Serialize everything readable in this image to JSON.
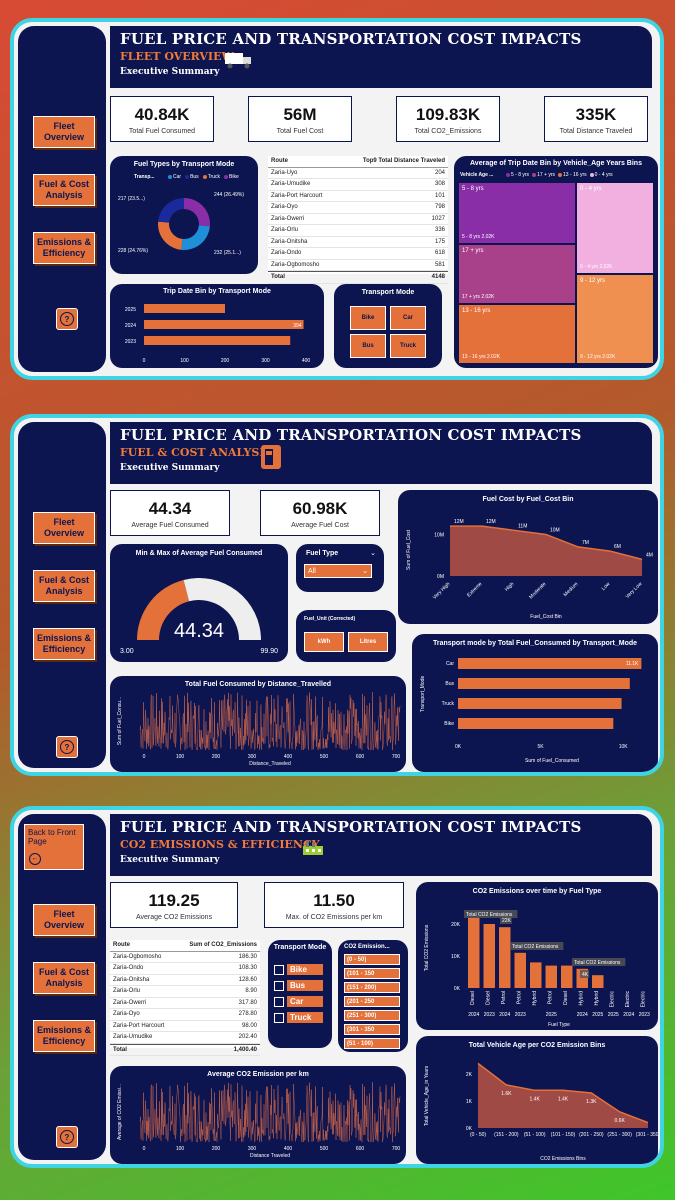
{
  "common": {
    "title": "FUEL PRICE AND TRANSPORTATION COST IMPACTS",
    "exec": "Executive Summary",
    "nav": {
      "fleet": "Fleet Overview",
      "fuel": "Fuel & Cost Analysis",
      "emissions": "Emissions & Efficiency"
    },
    "help": "?"
  },
  "p1": {
    "subtitle": "FLEET OVERVIEW",
    "kpis": [
      {
        "value": "40.84K",
        "label": "Total Fuel Consumed"
      },
      {
        "value": "56M",
        "label": "Total Fuel Cost"
      },
      {
        "value": "109.83K",
        "label": "Total CO2_Emissions"
      },
      {
        "value": "335K",
        "label": "Total Distance Traveled"
      }
    ],
    "donut": {
      "title": "Fuel Types by Transport Mode",
      "legend_title": "Transp...",
      "legend": [
        "Car",
        "Bus",
        "Truck",
        "Bike"
      ],
      "colors": [
        "#1f8fd8",
        "#1a2a9a",
        "#e4703a",
        "#8a2ea8"
      ],
      "labels": [
        "217 (23.5...)",
        "244 (26.49%)",
        "228 (24.76%)",
        "232 (25.1...)"
      ]
    },
    "route_table": {
      "h1": "Route",
      "h2": "Top9 Total Distance Traveled",
      "rows": [
        [
          "Zaria-Uyo",
          "204"
        ],
        [
          "Zaria-Umudike",
          "308"
        ],
        [
          "Zaria-Port Harcourt",
          "101"
        ],
        [
          "Zaria-Oyo",
          "798"
        ],
        [
          "Zaria-Owerri",
          "1027"
        ],
        [
          "Zaria-Orlu",
          "336"
        ],
        [
          "Zaria-Onitsha",
          "175"
        ],
        [
          "Zaria-Ondo",
          "618"
        ],
        [
          "Zaria-Ogbomosho",
          "581"
        ]
      ],
      "total": [
        "Total",
        "4148"
      ]
    },
    "treemap": {
      "title": "Average of Trip Date Bin by Vehicle_Age Years Bins",
      "legend_title": "Vehicle Age ...",
      "legend": [
        "5 - 8 yrs",
        "17 + yrs",
        "13 - 16 yrs",
        "0 - 4 yrs"
      ],
      "cells": [
        {
          "name": "5 - 8 yrs",
          "foot": "5 - 8 yrs 2.02K",
          "color": "#8a2ea8"
        },
        {
          "name": "0 - 4 yrs",
          "foot": "0 - 4 yrs 2.02K",
          "color": "#f2b0e0"
        },
        {
          "name": "17 + yrs",
          "foot": "17 + yrs 2.02K",
          "color": "#a8408a"
        },
        {
          "name": "9 - 12 yrs",
          "foot": "9 - 12 yrs 2.02K",
          "color": "#f09050"
        },
        {
          "name": "13 - 16 yrs",
          "foot": "13 - 16 yrs 2.02K",
          "color": "#e4703a"
        }
      ]
    },
    "trip_bar": {
      "title": "Trip Date Bin by Transport Mode",
      "categories": [
        "2025",
        "2024",
        "2023"
      ],
      "values": [
        200,
        394,
        361
      ],
      "ticks": [
        "0",
        "100",
        "200",
        "300",
        "400"
      ]
    },
    "transport_slicer": {
      "title": "Transport Mode",
      "items": [
        "Bike",
        "Car",
        "Bus",
        "Truck"
      ]
    }
  },
  "p2": {
    "subtitle": "FUEL & COST ANALYSIS",
    "kpis": [
      {
        "value": "44.34",
        "label": "Average Fuel Consumed"
      },
      {
        "value": "60.98K",
        "label": "Average Fuel Cost"
      }
    ],
    "gauge": {
      "title": "Min & Max of Average Fuel Consumed",
      "value": "44.34",
      "min": "3.00",
      "max": "99.90",
      "fraction": 0.42
    },
    "fuel_type": {
      "title": "Fuel Type",
      "selected": "All"
    },
    "fuel_unit": {
      "title": "Fuel_Unit (Corrected)",
      "items": [
        "kWh",
        "Litres"
      ]
    },
    "area": {
      "title": "Fuel Cost by Fuel_Cost Bin",
      "ylabel": "Sum of Fuel_Cost",
      "xlabel": "Fuel_Cost Bin",
      "categories": [
        "Very High",
        "Extreme",
        "High",
        "Moderate",
        "Medium",
        "Low",
        "Very Low"
      ],
      "values": [
        12,
        12,
        11,
        10,
        7,
        6,
        4
      ],
      "value_labels": [
        "12M",
        "12M",
        "11M",
        "10M",
        "7M",
        "6M",
        "4M"
      ],
      "yticks": [
        "10M",
        "0M"
      ]
    },
    "hbar": {
      "title": "Transport mode by Total Fuel_Consumed by Transport_Mode",
      "ylabel": "Transport_Mode",
      "xlabel": "Sum of Fuel_Consumed",
      "categories": [
        "Car",
        "Bus",
        "Truck",
        "Bike"
      ],
      "values": [
        11.1,
        10.4,
        9.9,
        9.4
      ],
      "top_label": "11.1K",
      "ticks": [
        "0K",
        "5K",
        "10K"
      ]
    },
    "dist": {
      "title": "Total Fuel Consumed by Distance_Travelled",
      "ylabel": "Sum of Fuel_Consu...",
      "xlabel": "Distance_Traveled",
      "xticks": [
        "0",
        "100",
        "200",
        "300",
        "400",
        "500",
        "600",
        "700"
      ]
    }
  },
  "p3": {
    "back": "Back to Front Page",
    "subtitle": "CO2 EMISSIONS & EFFICIENCY",
    "kpis": [
      {
        "value": "119.25",
        "label": "Average CO2 Emissions"
      },
      {
        "value": "11.50",
        "label": "Max. of CO2 Emissions per km"
      }
    ],
    "route_table": {
      "h1": "Route",
      "h2": "Sum of CO2_Emissions",
      "rows": [
        [
          "Zaria-Ogbomosho",
          "186.30"
        ],
        [
          "Zaria-Ondo",
          "108.30"
        ],
        [
          "Zaria-Onitsha",
          "128.60"
        ],
        [
          "Zaria-Orlu",
          "8.90"
        ],
        [
          "Zaria-Owerri",
          "317.80"
        ],
        [
          "Zaria-Oyo",
          "278.80"
        ],
        [
          "Zaria-Port Harcourt",
          "98.00"
        ],
        [
          "Zaria-Umudike",
          "202.40"
        ]
      ],
      "total": [
        "Total",
        "1,400.40"
      ]
    },
    "transport_slicer": {
      "title": "Transport Mode",
      "items": [
        "Bike",
        "Bus",
        "Car",
        "Truck"
      ]
    },
    "co2_bins": {
      "title": "CO2 Emission...",
      "items": [
        "(0 - 50)",
        "(101 - 150",
        "(151 - 200)",
        "(201 - 250",
        "(251 - 300)",
        "(301 - 350",
        "(51 - 100)"
      ]
    },
    "co2_bar": {
      "title": "CO2 Emissions over time by Fuel Type",
      "ylabel": "Total CO2 Emissions",
      "xlabel": "Fuel Type",
      "categories": [
        "Diesel",
        "Diesel",
        "Petrol",
        "Petrol",
        "Hybrid",
        "Petrol",
        "Diesel",
        "Hybrid",
        "Hybrid",
        "Electric",
        "Electric",
        "Electric"
      ],
      "years": [
        "2024",
        "2023",
        "2024",
        "2023",
        "",
        "2025",
        "",
        "2024",
        "2025",
        "2025",
        "2024",
        "2023"
      ],
      "values": [
        22,
        20,
        19,
        11,
        8,
        7,
        7,
        6,
        4,
        0,
        0,
        0
      ],
      "annotations": [
        "Total CO2 Emissions",
        "22K",
        "Total CO2 Emissions",
        "Total CO2 Emissions",
        "4K"
      ],
      "yticks": [
        "20K",
        "10K",
        "0K"
      ]
    },
    "age_area": {
      "title": "Total Vehicle Age per CO2 Emission Bins",
      "ylabel": "Total Vehicle_Age_in Years",
      "xlabel": "CO2 Emissions Bins",
      "categories": [
        "(0 - 50)",
        "(151 - 200)",
        "(51 - 100)",
        "(101 - 150)",
        "(201 - 250)",
        "(251 - 300)",
        "(301 - 350)"
      ],
      "values": [
        2.4,
        1.6,
        1.4,
        1.4,
        1.3,
        0.6,
        0.2
      ],
      "value_labels": [
        "",
        "1.6K",
        "1.4K",
        "1.4K",
        "1.3K",
        "0.6K",
        ""
      ],
      "yticks": [
        "2K",
        "1K",
        "0K"
      ]
    },
    "dist": {
      "title": "Average CO2 Emission per km",
      "ylabel": "Average of CO2 Emissi...",
      "xlabel": "Distance Traveled",
      "xticks": [
        "0",
        "100",
        "200",
        "300",
        "400",
        "500",
        "600",
        "700"
      ]
    }
  }
}
